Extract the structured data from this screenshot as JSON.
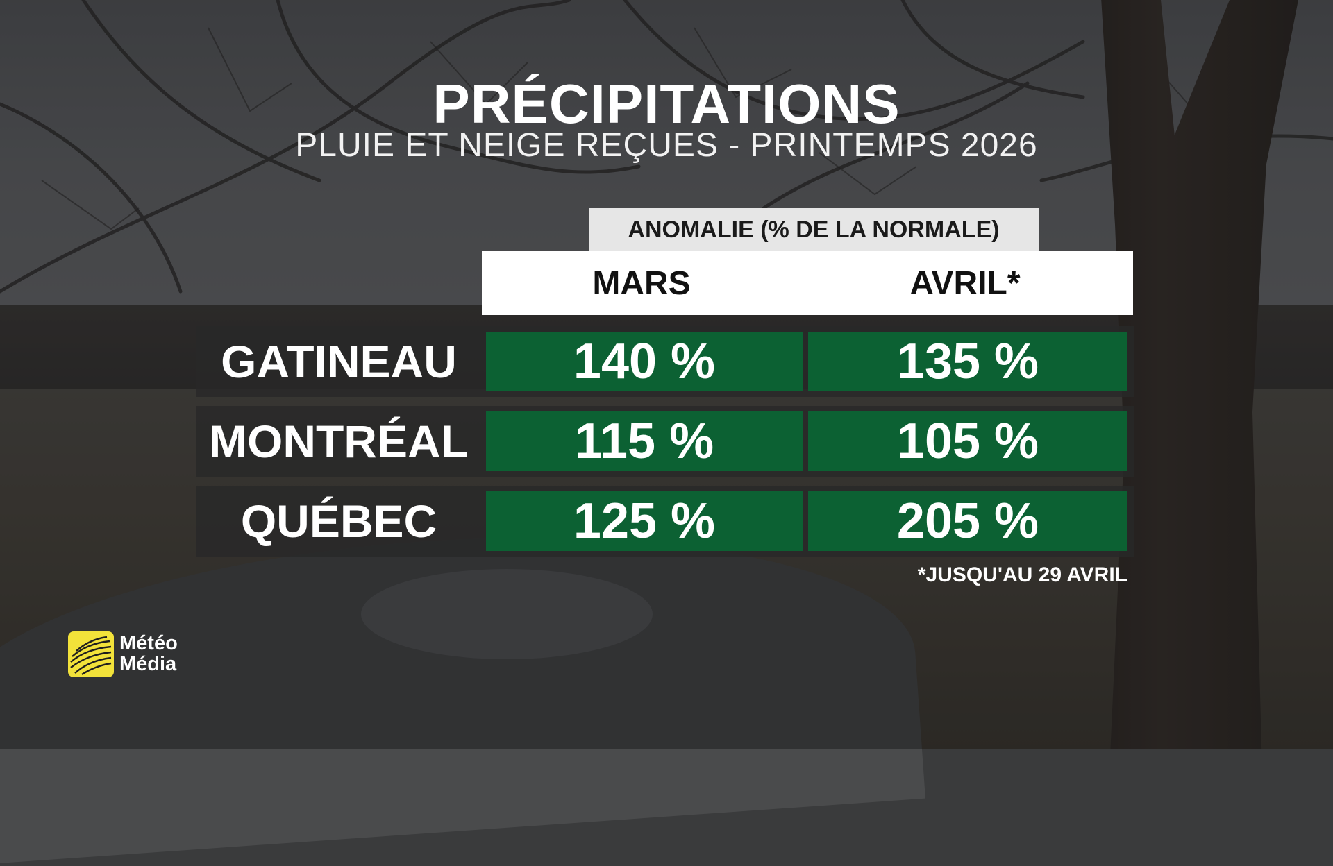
{
  "header": {
    "title": "PRÉCIPITATIONS",
    "subtitle": "PLUIE ET NEIGE REÇUES - PRINTEMPS 2026"
  },
  "table": {
    "group_label": "ANOMALIE (% DE LA NORMALE)",
    "columns": [
      "MARS",
      "AVRIL*"
    ],
    "rows": [
      {
        "city": "GATINEAU",
        "mars": "140 %",
        "avril": "135 %"
      },
      {
        "city": "MONTRÉAL",
        "mars": "115 %",
        "avril": "105 %"
      },
      {
        "city": "QUÉBEC",
        "mars": "125 %",
        "avril": "205 %"
      }
    ],
    "footnote": "*JUSQU'AU 29 AVRIL"
  },
  "logo": {
    "line1": "Météo",
    "line2": "Média",
    "icon": "globe-icon",
    "color": "#f2e23a"
  },
  "colors": {
    "cell_green": "#066e36",
    "row_dark": "#282828",
    "header_white": "#ffffff",
    "group_label_bg": "#e6e6e6"
  }
}
